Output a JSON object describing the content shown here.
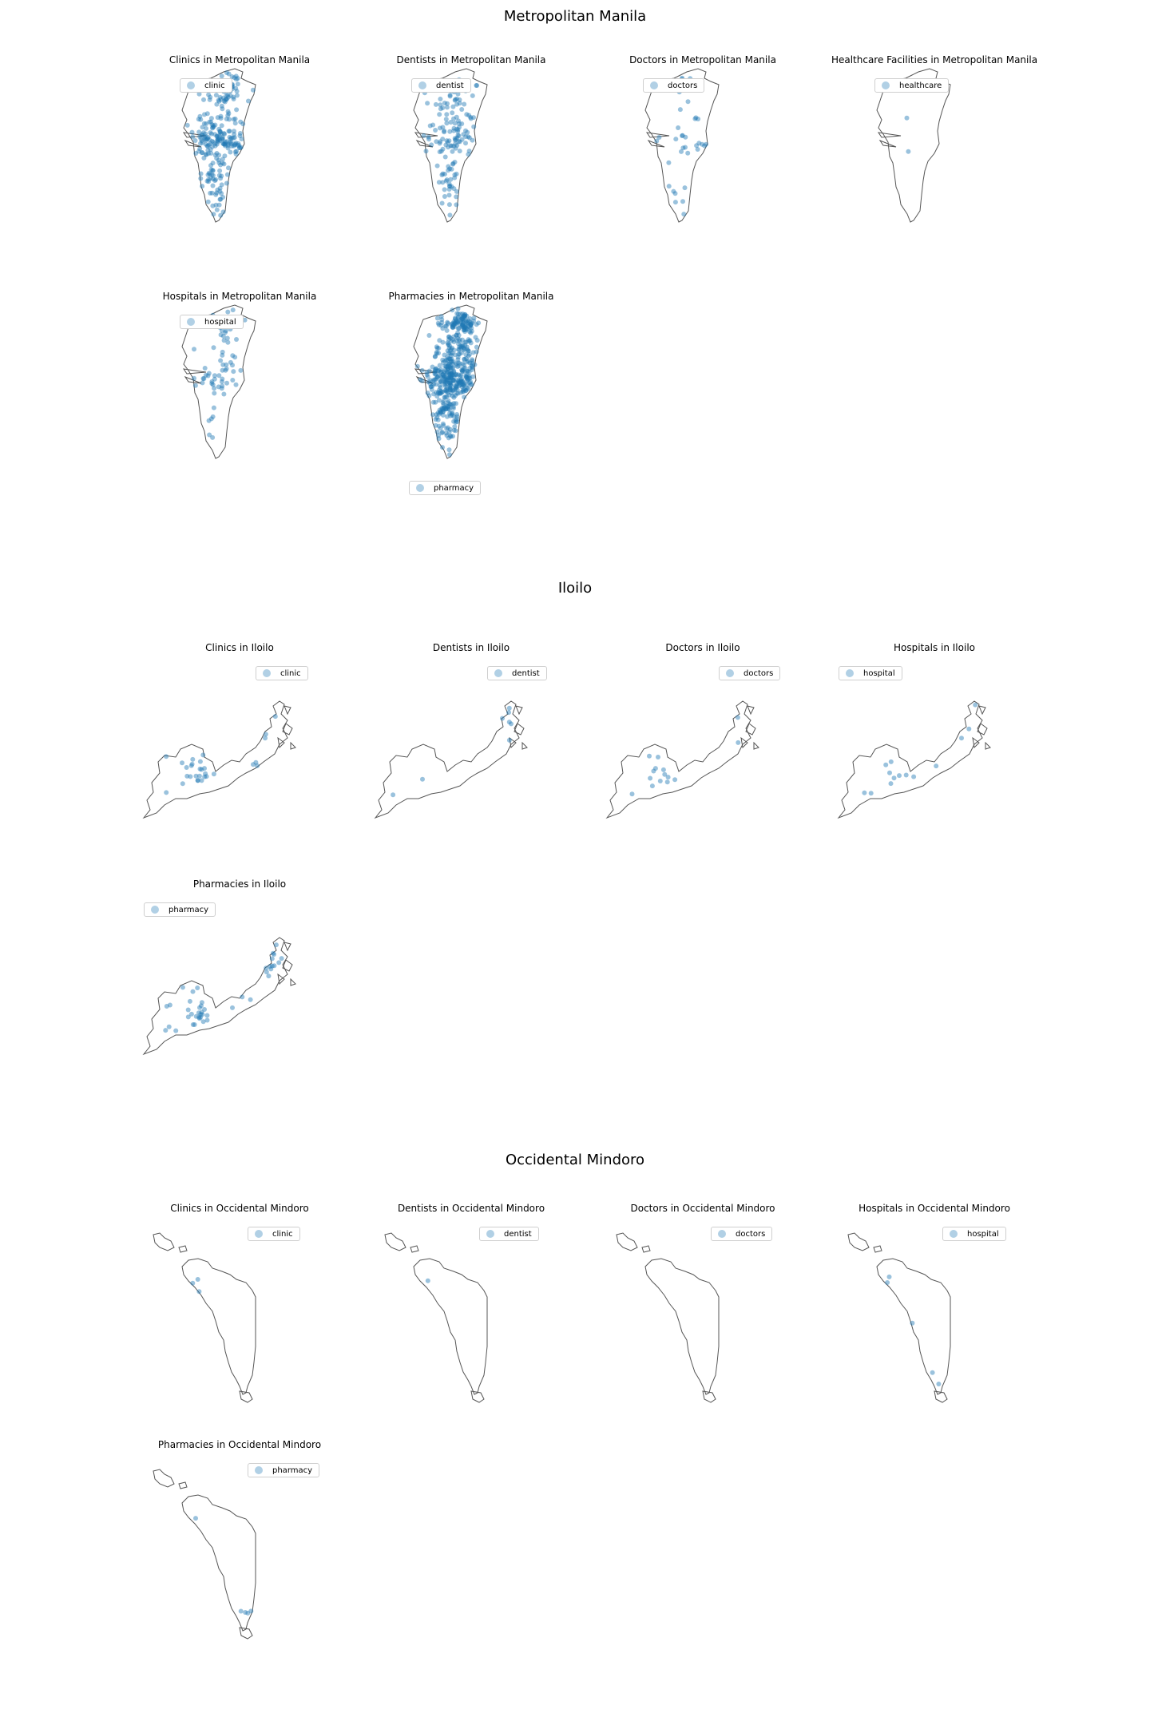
{
  "point_color": "#1f77b4",
  "outline_color": "#555555",
  "sections": [
    {
      "title": "Metropolitan Manila",
      "region": "manila",
      "panels": [
        {
          "title": "Clinics in Metropolitan Manila",
          "legend": "clinic",
          "count": 260
        },
        {
          "title": "Dentists in Metropolitan Manila",
          "legend": "dentist",
          "count": 150
        },
        {
          "title": "Doctors in Metropolitan Manila",
          "legend": "doctors",
          "count": 40
        },
        {
          "title": "Healthcare Facilities in Metropolitan Manila",
          "legend": "healthcare",
          "count": 2
        },
        {
          "title": "Hospitals in Metropolitan Manila",
          "legend": "hospital",
          "count": 75
        },
        {
          "title": "Pharmacies in Metropolitan Manila",
          "legend": "pharmacy",
          "count": 520
        }
      ]
    },
    {
      "title": "Iloilo",
      "region": "iloilo",
      "panels": [
        {
          "title": "Clinics in Iloilo",
          "legend": "clinic",
          "count": 30
        },
        {
          "title": "Dentists in Iloilo",
          "legend": "dentist",
          "count": 8
        },
        {
          "title": "Doctors in Iloilo",
          "legend": "doctors",
          "count": 15
        },
        {
          "title": "Hospitals in Iloilo",
          "legend": "hospital",
          "count": 14
        },
        {
          "title": "Pharmacies in Iloilo",
          "legend": "pharmacy",
          "count": 45
        }
      ]
    },
    {
      "title": "Occidental Mindoro",
      "region": "mindoro",
      "panels": [
        {
          "title": "Clinics in Occidental Mindoro",
          "legend": "clinic",
          "count": 3
        },
        {
          "title": "Dentists in Occidental Mindoro",
          "legend": "dentist",
          "count": 1
        },
        {
          "title": "Doctors in Occidental Mindoro",
          "legend": "doctors",
          "count": 0
        },
        {
          "title": "Hospitals in Occidental Mindoro",
          "legend": "hospital",
          "count": 5
        },
        {
          "title": "Pharmacies in Occidental Mindoro",
          "legend": "pharmacy",
          "count": 5
        }
      ]
    }
  ]
}
